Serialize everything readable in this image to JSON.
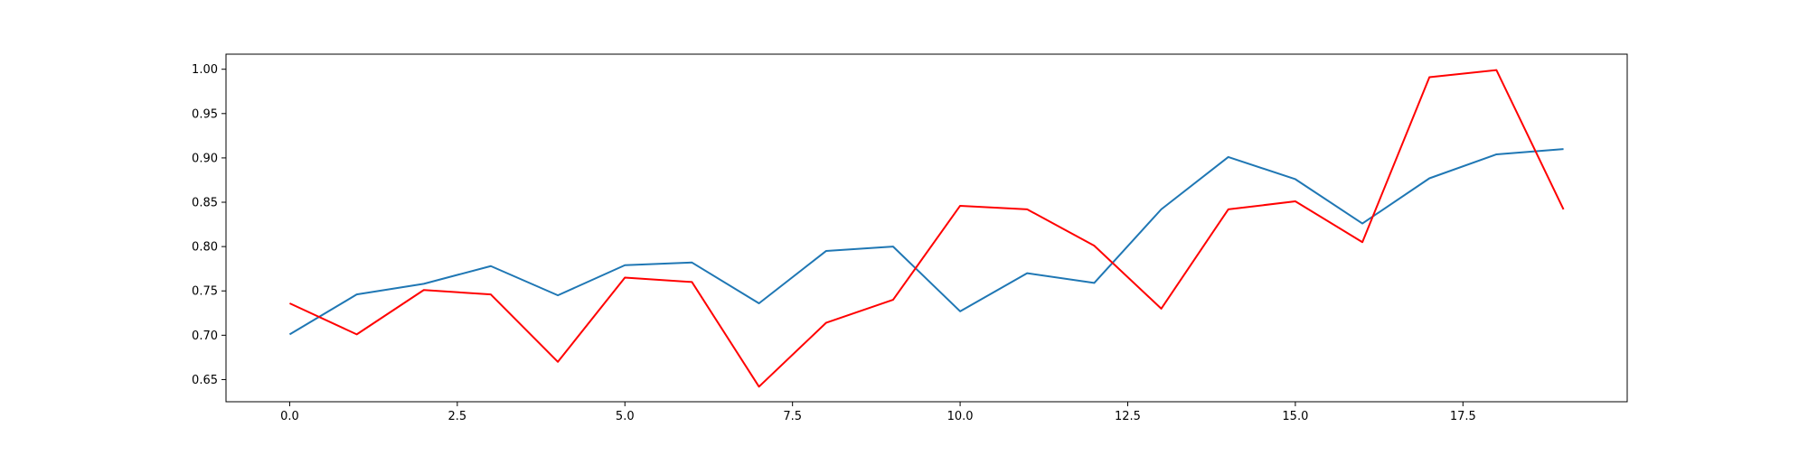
{
  "chart_data": {
    "type": "line",
    "title": "",
    "xlabel": "",
    "ylabel": "",
    "xlim": [
      -0.95,
      19.95
    ],
    "ylim": [
      0.625,
      1.017
    ],
    "x_ticks": [
      0.0,
      2.5,
      5.0,
      7.5,
      10.0,
      12.5,
      15.0,
      17.5
    ],
    "x_tick_labels": [
      "0.0",
      "2.5",
      "5.0",
      "7.5",
      "10.0",
      "12.5",
      "15.0",
      "17.5"
    ],
    "y_ticks": [
      0.65,
      0.7,
      0.75,
      0.8,
      0.85,
      0.9,
      0.95,
      1.0
    ],
    "y_tick_labels": [
      "0.65",
      "0.70",
      "0.75",
      "0.80",
      "0.85",
      "0.90",
      "0.95",
      "1.00"
    ],
    "grid": false,
    "legend": "none",
    "x": [
      0,
      1,
      2,
      3,
      4,
      5,
      6,
      7,
      8,
      9,
      10,
      11,
      12,
      13,
      14,
      15,
      16,
      17,
      18,
      19
    ],
    "series": [
      {
        "color": "#1f77b4",
        "values": [
          0.701,
          0.746,
          0.758,
          0.778,
          0.745,
          0.779,
          0.782,
          0.736,
          0.795,
          0.8,
          0.727,
          0.77,
          0.759,
          0.842,
          0.901,
          0.876,
          0.826,
          0.877,
          0.904,
          0.91
        ]
      },
      {
        "color": "#ff0000",
        "values": [
          0.736,
          0.701,
          0.751,
          0.746,
          0.67,
          0.765,
          0.76,
          0.642,
          0.714,
          0.74,
          0.846,
          0.842,
          0.801,
          0.73,
          0.842,
          0.851,
          0.805,
          0.991,
          0.999,
          0.842
        ]
      }
    ]
  }
}
